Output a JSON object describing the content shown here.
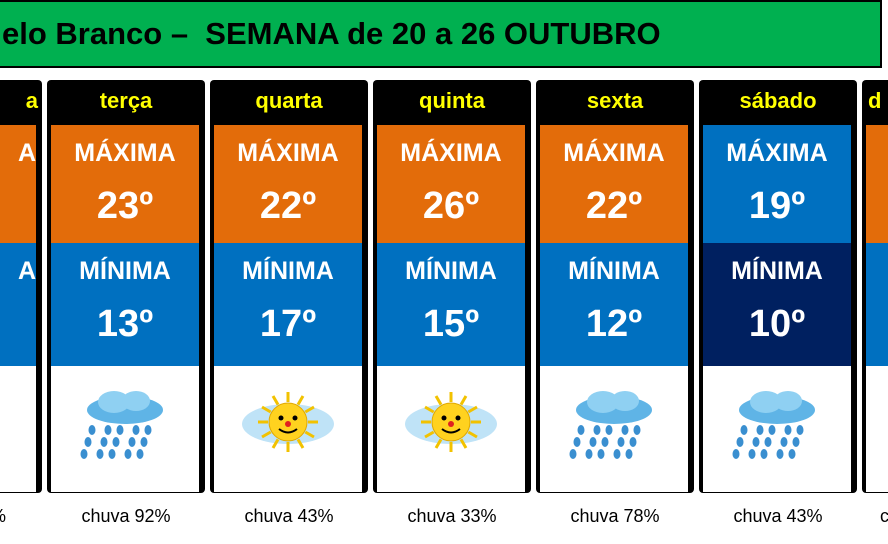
{
  "header": {
    "title": "elo Branco –  SEMANA de 20 a 26 OUTUBRO"
  },
  "days": [
    {
      "partial": "left",
      "day": "a",
      "max_label": "A",
      "min_label": "A",
      "rain": "%"
    },
    {
      "day": "terça",
      "max_label": "MÁXIMA",
      "max": "23º",
      "min_label": "MÍNIMA",
      "min": "13º",
      "rain": "chuva 92%",
      "icon": "rain",
      "max_color": "#e36c0a",
      "min_color": "#0070c0"
    },
    {
      "day": "quarta",
      "max_label": "MÁXIMA",
      "max": "22º",
      "min_label": "MÍNIMA",
      "min": "17º",
      "rain": "chuva 43%",
      "icon": "sun",
      "max_color": "#e36c0a",
      "min_color": "#0070c0"
    },
    {
      "day": "quinta",
      "max_label": "MÁXIMA",
      "max": "26º",
      "min_label": "MÍNIMA",
      "min": "15º",
      "rain": "chuva 33%",
      "icon": "sun",
      "max_color": "#e36c0a",
      "min_color": "#0070c0"
    },
    {
      "day": "sexta",
      "max_label": "MÁXIMA",
      "max": "22º",
      "min_label": "MÍNIMA",
      "min": "12º",
      "rain": "chuva 78%",
      "icon": "rain",
      "max_color": "#e36c0a",
      "min_color": "#0070c0"
    },
    {
      "day": "sábado",
      "max_label": "MÁXIMA",
      "max": "19º",
      "min_label": "MÍNIMA",
      "min": "10º",
      "rain": "chuva 43%",
      "icon": "rain",
      "max_color": "#0070c0",
      "min_color": "#002060"
    },
    {
      "partial": "right",
      "day": "d",
      "rain": "c",
      "max_color": "#e36c0a",
      "min_color": "#0070c0"
    }
  ]
}
